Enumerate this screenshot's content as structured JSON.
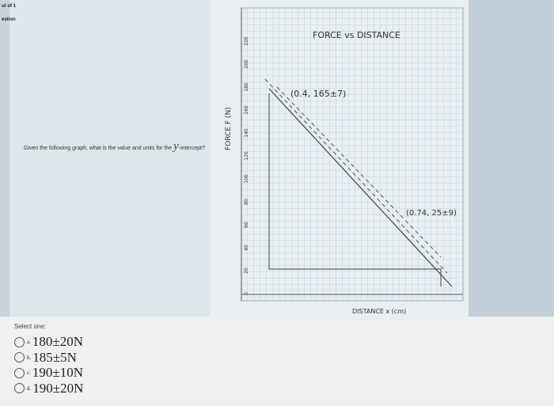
{
  "header": {
    "progress": "ut of 1",
    "label": "estion"
  },
  "question": {
    "text": "Given the following graph, what is the value and units for the ",
    "variable": "y",
    "suffix": "-intercept?"
  },
  "graph": {
    "title": "FORCE vs DISTANCE",
    "y_axis_label": "FORCE F (N)",
    "x_axis_label": "DISTANCE x (cm)",
    "y_ticks": [
      "220",
      "200",
      "180",
      "160",
      "140",
      "120",
      "100",
      "80",
      "60",
      "40",
      "20",
      "0"
    ],
    "annotations": [
      "(0.4, 165±7)",
      "(0.74, 25±9)"
    ]
  },
  "answers": {
    "prompt": "Select one:",
    "options": [
      {
        "letter": "a.",
        "text": "180±20N"
      },
      {
        "letter": "b.",
        "text": "185±5N"
      },
      {
        "letter": "c.",
        "text": "190±10N"
      },
      {
        "letter": "d.",
        "text": "190±20N"
      }
    ]
  }
}
